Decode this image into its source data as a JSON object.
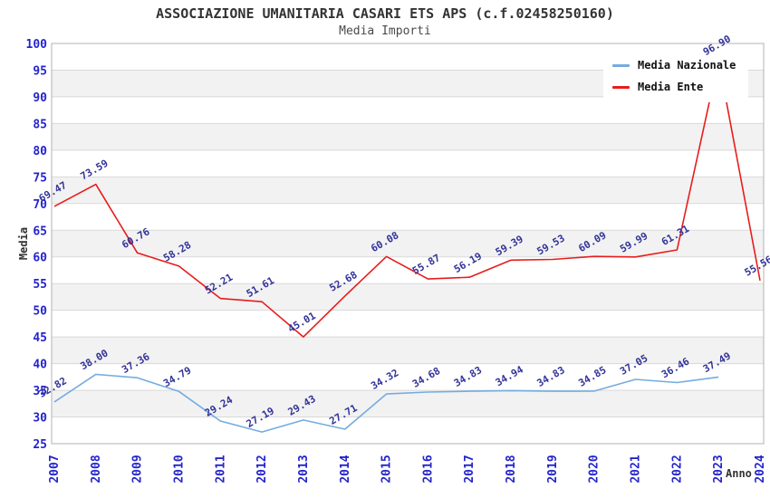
{
  "header": {
    "title": "ASSOCIAZIONE UMANITARIA CASARI ETS APS (c.f.02458250160)",
    "subtitle": "Media Importi"
  },
  "legend": [
    {
      "label": "Media Nazionale",
      "color": "#74ace0"
    },
    {
      "label": "Media Ente",
      "color": "#e81c1c"
    }
  ],
  "chart_data": {
    "type": "line",
    "title": "ASSOCIAZIONE UMANITARIA CASARI ETS APS (c.f.02458250160)",
    "subtitle": "Media Importi",
    "xlabel": "Anno",
    "ylabel": "Media",
    "categories": [
      "2007",
      "2008",
      "2009",
      "2010",
      "2011",
      "2012",
      "2013",
      "2014",
      "2015",
      "2016",
      "2017",
      "2018",
      "2019",
      "2020",
      "2021",
      "2022",
      "2023",
      "2024"
    ],
    "series": [
      {
        "name": "Media Nazionale",
        "color": "#74ace0",
        "values": [
          32.82,
          38.0,
          37.36,
          34.79,
          29.24,
          27.19,
          29.43,
          27.71,
          34.32,
          34.68,
          34.83,
          34.94,
          34.83,
          34.85,
          37.05,
          36.46,
          37.49,
          null
        ],
        "labels": [
          "32.82",
          "38.00",
          "37.36",
          "34.79",
          "29.24",
          "27.19",
          "29.43",
          "27.71",
          "34.32",
          "34.68",
          "34.83",
          "34.94",
          "34.83",
          "34.85",
          "37.05",
          "36.46",
          "37.49"
        ]
      },
      {
        "name": "Media Ente",
        "color": "#e81c1c",
        "values": [
          69.47,
          73.59,
          60.76,
          58.28,
          52.21,
          51.61,
          45.01,
          52.68,
          60.08,
          55.87,
          56.19,
          59.39,
          59.53,
          60.09,
          59.99,
          61.31,
          96.9,
          55.56
        ],
        "labels": [
          "69.47",
          "73.59",
          "60.76",
          "58.28",
          "52.21",
          "51.61",
          "45.01",
          "52.68",
          "60.08",
          "55.87",
          "56.19",
          "59.39",
          "59.53",
          "60.09",
          "59.99",
          "61.31",
          "96.90",
          "55.56"
        ]
      }
    ],
    "ylim": [
      25,
      100
    ],
    "ytick_step": 5,
    "yticks": [
      25,
      30,
      35,
      40,
      45,
      50,
      55,
      60,
      65,
      70,
      75,
      80,
      85,
      90,
      95,
      100
    ],
    "grid": "horizontal-alternating-bands",
    "legend_position": "top-right",
    "data_label_rotation_deg": -30,
    "xtick_rotation_deg": -90,
    "colors": {
      "tick_label": "#2424cc",
      "data_label": "#333399",
      "axis_title": "#333333",
      "band_gray": "#f2f2f2",
      "band_white": "#ffffff",
      "gridline": "#d9d9d9",
      "plot_border": "#b3b3b3"
    }
  }
}
